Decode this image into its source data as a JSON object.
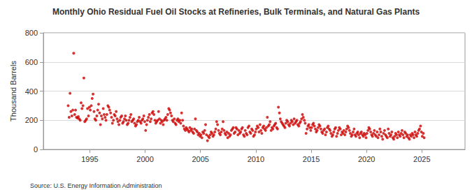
{
  "chart_data": {
    "type": "scatter",
    "title": "Monthly Ohio Residual Fuel Oil Stocks at Refineries, Bulk Terminals, and Natural Gas Plants",
    "y_label": "Thousand Barrels",
    "source": "Source: U.S. Energy Information Administration",
    "color": "#cc0000",
    "marker": "circle",
    "grid": true,
    "xlim": [
      1990.8,
      2028.9
    ],
    "xticks": [
      1995,
      2000,
      2005,
      2010,
      2015,
      2020,
      2025
    ],
    "ylim": [
      0,
      800
    ],
    "yticks": [
      0,
      200,
      400,
      600,
      800
    ],
    "x": [
      1993.04,
      1993.13,
      1993.21,
      1993.29,
      1993.38,
      1993.46,
      1993.54,
      1993.63,
      1993.71,
      1993.79,
      1993.88,
      1993.96,
      1994.04,
      1994.13,
      1994.21,
      1994.29,
      1994.38,
      1994.46,
      1994.54,
      1994.63,
      1994.71,
      1994.79,
      1994.88,
      1994.96,
      1995.04,
      1995.13,
      1995.21,
      1995.29,
      1995.38,
      1995.46,
      1995.54,
      1995.63,
      1995.71,
      1995.79,
      1995.88,
      1995.96,
      1996.04,
      1996.13,
      1996.21,
      1996.29,
      1996.38,
      1996.46,
      1996.54,
      1996.63,
      1996.71,
      1996.79,
      1996.88,
      1996.96,
      1997.04,
      1997.13,
      1997.21,
      1997.29,
      1997.38,
      1997.46,
      1997.54,
      1997.63,
      1997.71,
      1997.79,
      1997.88,
      1997.96,
      1998.04,
      1998.13,
      1998.21,
      1998.29,
      1998.38,
      1998.46,
      1998.54,
      1998.63,
      1998.71,
      1998.79,
      1998.88,
      1998.96,
      1999.04,
      1999.13,
      1999.21,
      1999.29,
      1999.38,
      1999.46,
      1999.54,
      1999.63,
      1999.71,
      1999.79,
      1999.88,
      1999.96,
      2000.04,
      2000.13,
      2000.21,
      2000.29,
      2000.38,
      2000.46,
      2000.54,
      2000.63,
      2000.71,
      2000.79,
      2000.88,
      2000.96,
      2001.04,
      2001.13,
      2001.21,
      2001.29,
      2001.38,
      2001.46,
      2001.54,
      2001.63,
      2001.71,
      2001.79,
      2001.88,
      2001.96,
      2002.04,
      2002.13,
      2002.21,
      2002.29,
      2002.38,
      2002.46,
      2002.54,
      2002.63,
      2002.71,
      2002.79,
      2002.88,
      2002.96,
      2003.04,
      2003.13,
      2003.21,
      2003.29,
      2003.38,
      2003.46,
      2003.54,
      2003.63,
      2003.71,
      2003.79,
      2003.88,
      2003.96,
      2004.04,
      2004.13,
      2004.21,
      2004.29,
      2004.38,
      2004.46,
      2004.54,
      2004.63,
      2004.71,
      2004.79,
      2004.88,
      2004.96,
      2005.04,
      2005.13,
      2005.21,
      2005.29,
      2005.38,
      2005.46,
      2005.54,
      2005.63,
      2005.71,
      2005.79,
      2005.88,
      2005.96,
      2006.04,
      2006.13,
      2006.21,
      2006.29,
      2006.38,
      2006.46,
      2006.54,
      2006.63,
      2006.71,
      2006.79,
      2006.88,
      2006.96,
      2007.04,
      2007.13,
      2007.21,
      2007.29,
      2007.38,
      2007.46,
      2007.54,
      2007.63,
      2007.71,
      2007.79,
      2007.88,
      2007.96,
      2008.04,
      2008.13,
      2008.21,
      2008.29,
      2008.38,
      2008.46,
      2008.54,
      2008.63,
      2008.71,
      2008.79,
      2008.88,
      2008.96,
      2009.04,
      2009.13,
      2009.21,
      2009.29,
      2009.38,
      2009.46,
      2009.54,
      2009.63,
      2009.71,
      2009.79,
      2009.88,
      2009.96,
      2010.04,
      2010.13,
      2010.21,
      2010.29,
      2010.38,
      2010.46,
      2010.54,
      2010.63,
      2010.71,
      2010.79,
      2010.88,
      2010.96,
      2011.04,
      2011.13,
      2011.21,
      2011.29,
      2011.38,
      2011.46,
      2011.54,
      2011.63,
      2011.71,
      2011.79,
      2011.88,
      2011.96,
      2012.04,
      2012.13,
      2012.21,
      2012.29,
      2012.38,
      2012.46,
      2012.54,
      2012.63,
      2012.71,
      2012.79,
      2012.88,
      2012.96,
      2013.04,
      2013.13,
      2013.21,
      2013.29,
      2013.38,
      2013.46,
      2013.54,
      2013.63,
      2013.71,
      2013.79,
      2013.88,
      2013.96,
      2014.04,
      2014.13,
      2014.21,
      2014.29,
      2014.38,
      2014.46,
      2014.54,
      2014.63,
      2014.71,
      2014.79,
      2014.88,
      2014.96,
      2015.04,
      2015.13,
      2015.21,
      2015.29,
      2015.38,
      2015.46,
      2015.54,
      2015.63,
      2015.71,
      2015.79,
      2015.88,
      2015.96,
      2016.04,
      2016.13,
      2016.21,
      2016.29,
      2016.38,
      2016.46,
      2016.54,
      2016.63,
      2016.71,
      2016.79,
      2016.88,
      2016.96,
      2017.04,
      2017.13,
      2017.21,
      2017.29,
      2017.38,
      2017.46,
      2017.54,
      2017.63,
      2017.71,
      2017.79,
      2017.88,
      2017.96,
      2018.04,
      2018.13,
      2018.21,
      2018.29,
      2018.38,
      2018.46,
      2018.54,
      2018.63,
      2018.71,
      2018.79,
      2018.88,
      2018.96,
      2019.04,
      2019.13,
      2019.21,
      2019.29,
      2019.38,
      2019.46,
      2019.54,
      2019.63,
      2019.71,
      2019.79,
      2019.88,
      2019.96,
      2020.04,
      2020.13,
      2020.21,
      2020.29,
      2020.38,
      2020.46,
      2020.54,
      2020.63,
      2020.71,
      2020.79,
      2020.88,
      2020.96,
      2021.04,
      2021.13,
      2021.21,
      2021.29,
      2021.38,
      2021.46,
      2021.54,
      2021.63,
      2021.71,
      2021.79,
      2021.88,
      2021.96,
      2022.04,
      2022.13,
      2022.21,
      2022.29,
      2022.38,
      2022.46,
      2022.54,
      2022.63,
      2022.71,
      2022.79,
      2022.88,
      2022.96,
      2023.04,
      2023.13,
      2023.21,
      2023.29,
      2023.38,
      2023.46,
      2023.54,
      2023.63,
      2023.71,
      2023.79,
      2023.88,
      2023.96,
      2024.04,
      2024.13,
      2024.21,
      2024.29,
      2024.38,
      2024.46,
      2024.54,
      2024.63,
      2024.71,
      2024.79,
      2024.88,
      2024.96,
      2025.04,
      2025.13,
      2025.21
    ],
    "values": [
      300,
      220,
      385,
      260,
      230,
      270,
      660,
      240,
      270,
      220,
      215,
      225,
      210,
      200,
      320,
      280,
      300,
      490,
      190,
      200,
      210,
      280,
      230,
      290,
      270,
      300,
      350,
      380,
      260,
      210,
      200,
      230,
      270,
      310,
      250,
      170,
      230,
      210,
      280,
      240,
      220,
      200,
      240,
      300,
      290,
      270,
      250,
      220,
      180,
      200,
      240,
      230,
      260,
      210,
      190,
      170,
      200,
      220,
      230,
      180,
      190,
      210,
      230,
      200,
      170,
      180,
      200,
      220,
      240,
      190,
      200,
      210,
      180,
      160,
      170,
      190,
      200,
      220,
      190,
      180,
      200,
      210,
      230,
      190,
      130,
      170,
      200,
      220,
      240,
      190,
      210,
      250,
      260,
      240,
      200,
      180,
      190,
      200,
      260,
      210,
      180,
      200,
      190,
      170,
      200,
      210,
      220,
      200,
      240,
      280,
      270,
      250,
      230,
      200,
      190,
      210,
      180,
      170,
      200,
      210,
      190,
      200,
      180,
      250,
      200,
      160,
      140,
      130,
      150,
      140,
      130,
      120,
      150,
      130,
      140,
      120,
      110,
      140,
      210,
      130,
      120,
      100,
      110,
      90,
      100,
      80,
      120,
      110,
      130,
      170,
      100,
      60,
      90,
      80,
      100,
      120,
      110,
      90,
      100,
      120,
      140,
      190,
      170,
      130,
      110,
      100,
      120,
      140,
      190,
      130,
      110,
      100,
      120,
      80,
      110,
      90,
      100,
      130,
      140,
      150,
      110,
      120,
      150,
      140,
      100,
      130,
      110,
      120,
      140,
      150,
      100,
      90,
      130,
      110,
      100,
      150,
      160,
      120,
      110,
      140,
      130,
      90,
      100,
      120,
      140,
      160,
      150,
      120,
      170,
      130,
      110,
      150,
      160,
      140,
      130,
      150,
      220,
      160,
      170,
      190,
      130,
      150,
      140,
      160,
      170,
      180,
      150,
      140,
      290,
      250,
      210,
      190,
      180,
      170,
      160,
      150,
      180,
      200,
      190,
      170,
      160,
      180,
      200,
      190,
      170,
      210,
      180,
      190,
      200,
      170,
      160,
      180,
      190,
      210,
      240,
      220,
      200,
      180,
      110,
      140,
      160,
      170,
      150,
      130,
      150,
      170,
      180,
      160,
      140,
      120,
      130,
      150,
      170,
      160,
      140,
      120,
      110,
      130,
      140,
      100,
      120,
      150,
      160,
      140,
      130,
      110,
      90,
      100,
      120,
      140,
      150,
      90,
      110,
      130,
      150,
      140,
      100,
      120,
      110,
      130,
      100,
      120,
      140,
      160,
      150,
      130,
      110,
      90,
      100,
      120,
      140,
      100,
      90,
      110,
      120,
      100,
      80,
      110,
      120,
      100,
      90,
      110,
      100,
      80,
      110,
      130,
      150,
      140,
      120,
      100,
      90,
      110,
      130,
      100,
      90,
      120,
      80,
      100,
      140,
      120,
      90,
      70,
      110,
      130,
      100,
      90,
      80,
      140,
      110,
      90,
      100,
      120,
      80,
      70,
      90,
      110,
      100,
      80,
      120,
      100,
      90,
      110,
      130,
      100,
      80,
      120,
      110,
      90,
      100,
      80,
      70,
      100,
      90,
      110,
      100,
      80,
      120,
      100,
      90,
      110,
      130,
      140,
      160,
      120,
      90,
      110,
      80
    ]
  }
}
